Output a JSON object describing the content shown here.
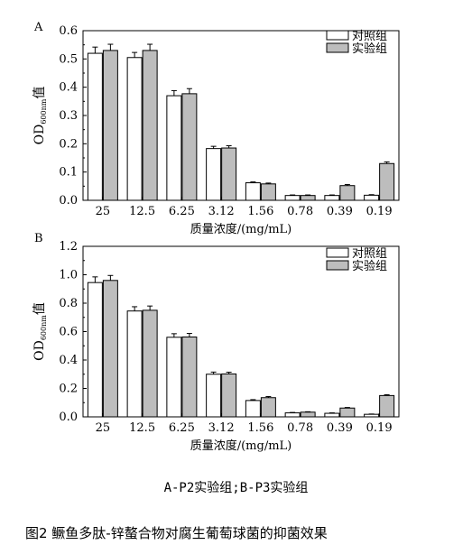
{
  "chart_data": [
    {
      "panel_label": "A",
      "type": "bar",
      "categories": [
        "25",
        "12.5",
        "6.25",
        "3.12",
        "1.56",
        "0.78",
        "0.39",
        "0.19"
      ],
      "series": [
        {
          "name": "对照组",
          "values": [
            0.52,
            0.505,
            0.37,
            0.183,
            0.062,
            0.017,
            0.017,
            0.018
          ],
          "errors": [
            0.022,
            0.018,
            0.018,
            0.008,
            0.003,
            0.002,
            0.002,
            0.002
          ],
          "color": "#ffffff"
        },
        {
          "name": "实验组",
          "values": [
            0.53,
            0.53,
            0.377,
            0.185,
            0.058,
            0.017,
            0.052,
            0.13
          ],
          "errors": [
            0.022,
            0.022,
            0.018,
            0.008,
            0.003,
            0.002,
            0.004,
            0.006
          ],
          "color": "#bdbdbd"
        }
      ],
      "xlabel": "质量浓度/(mg/mL)",
      "ylabel_main": "OD",
      "ylabel_sub": "600nm",
      "ylabel_suffix": "值",
      "ylim": [
        0,
        0.6
      ],
      "yticks": [
        "0.0",
        "0.1",
        "0.2",
        "0.3",
        "0.4",
        "0.5",
        "0.6"
      ],
      "legend_position": "top-right"
    },
    {
      "panel_label": "B",
      "type": "bar",
      "categories": [
        "25",
        "12.5",
        "6.25",
        "3.12",
        "1.56",
        "0.78",
        "0.39",
        "0.19"
      ],
      "series": [
        {
          "name": "对照组",
          "values": [
            0.945,
            0.745,
            0.56,
            0.3,
            0.115,
            0.028,
            0.025,
            0.018
          ],
          "errors": [
            0.04,
            0.03,
            0.025,
            0.015,
            0.006,
            0.003,
            0.003,
            0.002
          ],
          "color": "#ffffff"
        },
        {
          "name": "实验组",
          "values": [
            0.96,
            0.75,
            0.562,
            0.302,
            0.135,
            0.033,
            0.062,
            0.15
          ],
          "errors": [
            0.035,
            0.03,
            0.025,
            0.012,
            0.008,
            0.003,
            0.004,
            0.006
          ],
          "color": "#bdbdbd"
        }
      ],
      "xlabel": "质量浓度/(mg/mL)",
      "ylabel_main": "OD",
      "ylabel_sub": "600nm",
      "ylabel_suffix": "值",
      "ylim": [
        0,
        1.2
      ],
      "yticks": [
        "0.0",
        "0.2",
        "0.4",
        "0.6",
        "0.8",
        "1.0",
        "1.2"
      ],
      "legend_position": "top-right"
    }
  ],
  "captions": {
    "sub": "A-P2实验组;B-P3实验组",
    "main": "图2 鳜鱼多肽-锌螯合物对腐生葡萄球菌的抑菌效果"
  }
}
